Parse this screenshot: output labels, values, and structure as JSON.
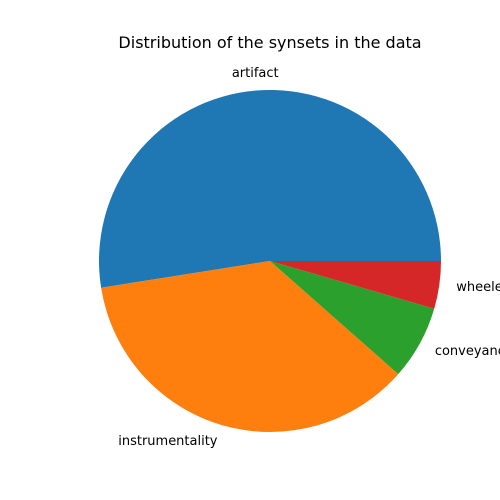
{
  "chart_data": {
    "type": "pie",
    "title": "Distribution of the synsets in the data",
    "categories": [
      "artifact",
      "instrumentality",
      "conveyance",
      "wheeled vehicle"
    ],
    "values": [
      52.5,
      36.0,
      7.0,
      4.5
    ],
    "colors": [
      "#1f77b4",
      "#ff7f0e",
      "#2ca02c",
      "#d62728"
    ],
    "start_angle_deg": 0,
    "direction": "counterclockwise",
    "legend": "none"
  }
}
